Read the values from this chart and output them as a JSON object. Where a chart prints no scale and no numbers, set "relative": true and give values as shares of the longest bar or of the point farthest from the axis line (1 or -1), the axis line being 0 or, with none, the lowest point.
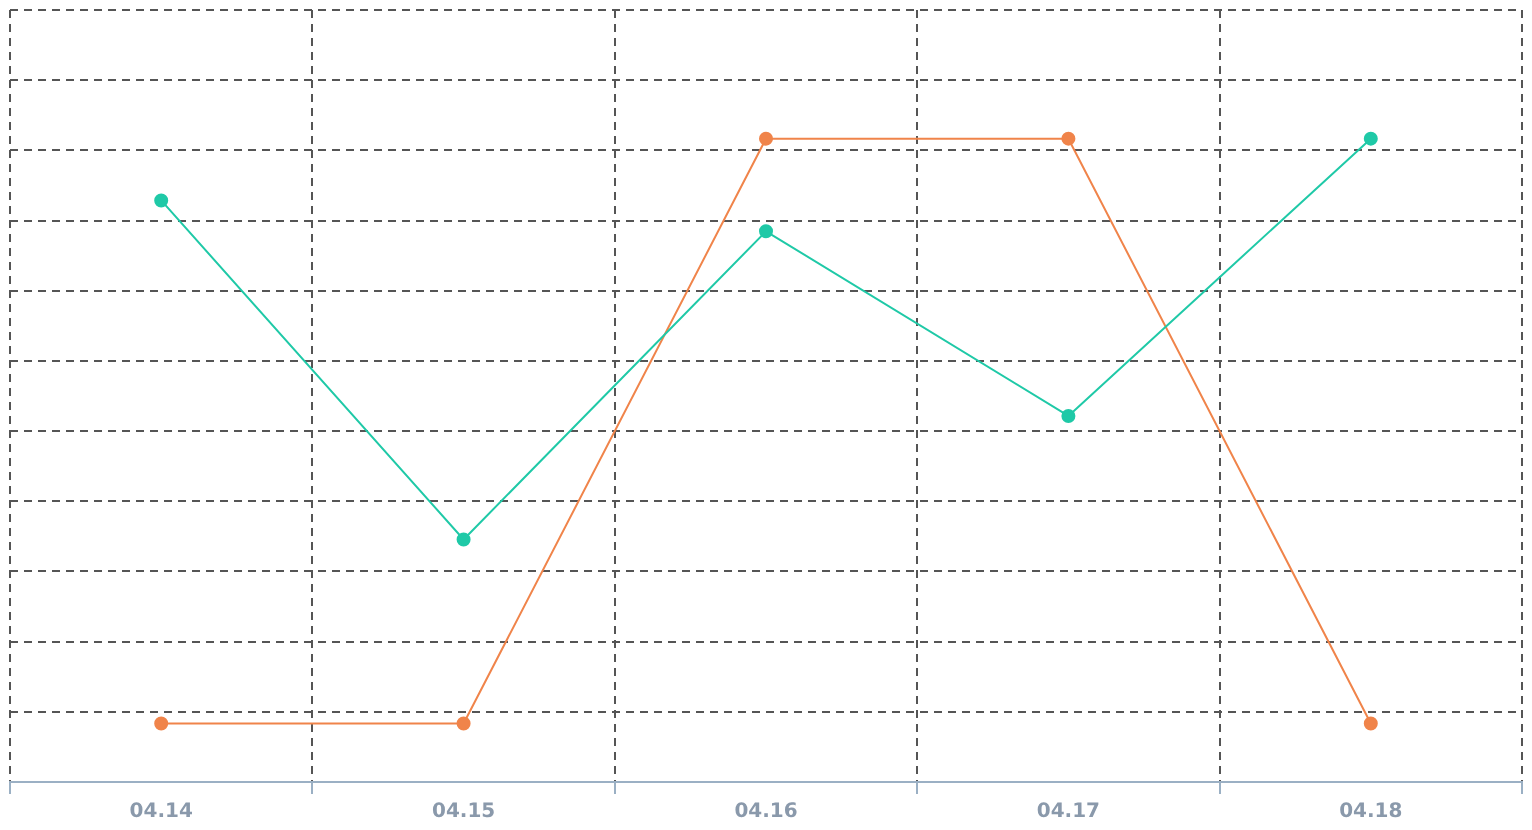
{
  "chart_data": {
    "type": "line",
    "relative": true,
    "categories": [
      "04.14",
      "04.15",
      "04.16",
      "04.17",
      "04.18"
    ],
    "series": [
      {
        "color": "#1fc9a7",
        "values": [
          0.904,
          0.377,
          0.856,
          0.569,
          1
        ]
      },
      {
        "color": "#f0844a",
        "values": [
          0.091,
          0.091,
          1,
          1,
          0.091
        ]
      }
    ],
    "grid": true,
    "legend": false,
    "marker": "circle",
    "line_style": "solid"
  }
}
